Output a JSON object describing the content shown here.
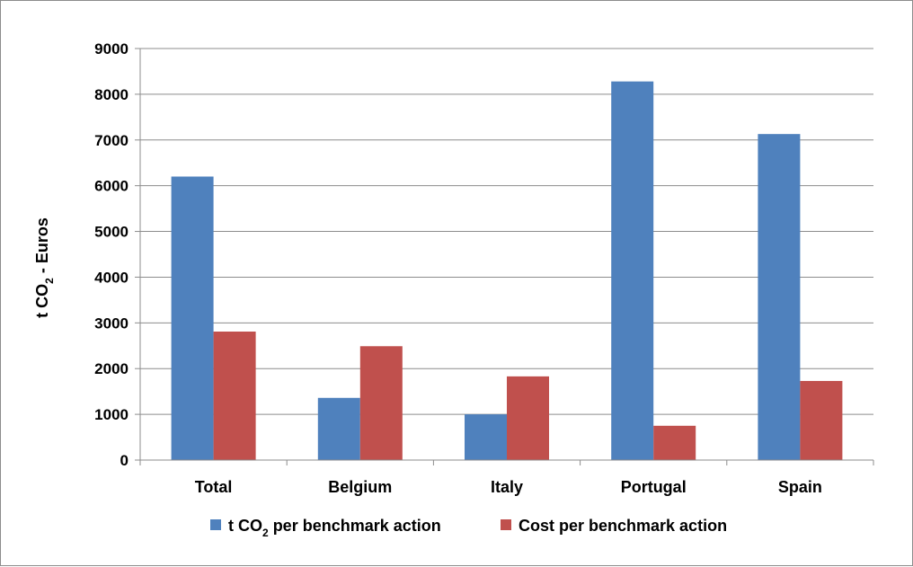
{
  "chart_data": {
    "type": "bar",
    "categories": [
      "Total",
      "Belgium",
      "Italy",
      "Portugal",
      "Spain"
    ],
    "series": [
      {
        "label_main": "t CO",
        "label_sub": "2",
        "label_rest": " per benchmark action",
        "color": "#4f81bd",
        "values": [
          6200,
          1360,
          1000,
          8280,
          7130
        ]
      },
      {
        "label_main": "Cost per benchmark action",
        "label_sub": "",
        "label_rest": "",
        "color": "#c0504d",
        "values": [
          2810,
          2490,
          1830,
          750,
          1730
        ]
      }
    ],
    "yaxis": {
      "title_main": "t  CO",
      "title_sub": "2",
      "title_rest": "  -  Euros",
      "ylim": [
        0,
        9000
      ],
      "ticks": [
        "0",
        "1000",
        "2000",
        "3000",
        "4000",
        "5000",
        "6000",
        "7000",
        "8000",
        "9000"
      ]
    },
    "grid": true,
    "legend_position": "bottom"
  }
}
